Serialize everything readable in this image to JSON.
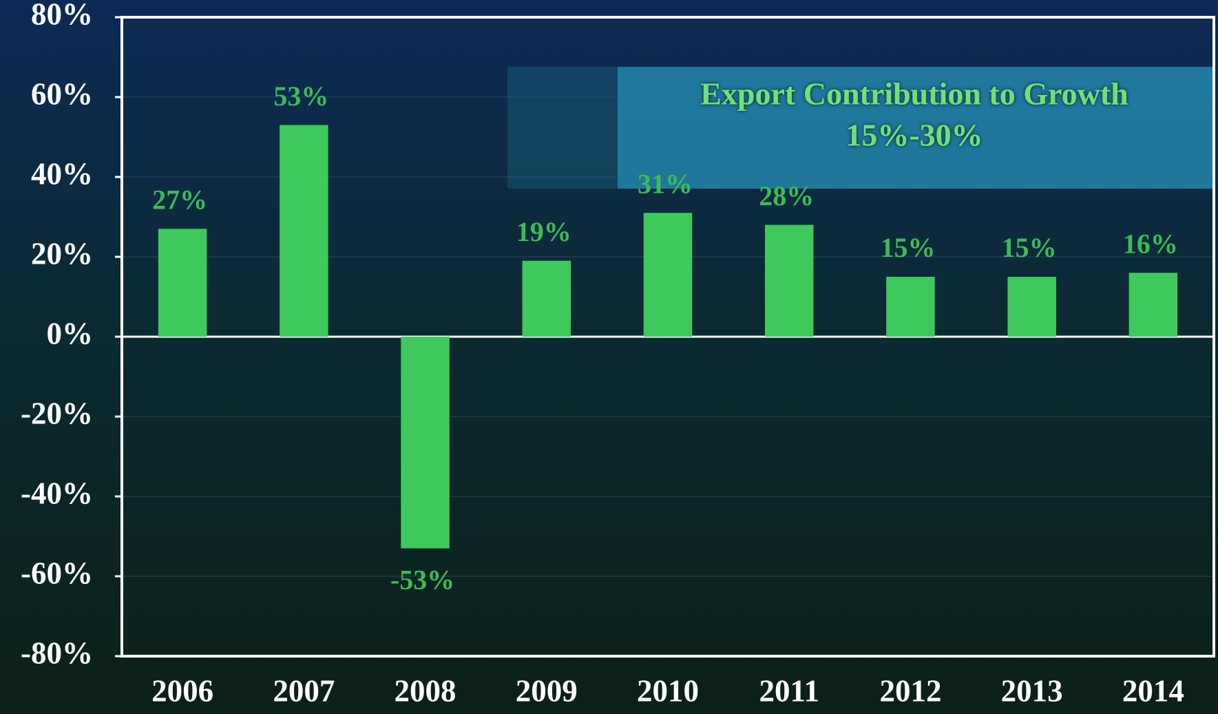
{
  "chart_data": {
    "type": "bar",
    "annotations": [
      "Export Contribution to Growth",
      "15%-30%"
    ],
    "categories": [
      "2006",
      "2007",
      "2008",
      "2009",
      "2010",
      "2011",
      "2012",
      "2013",
      "2014"
    ],
    "values": [
      27,
      53,
      -53,
      19,
      31,
      28,
      15,
      15,
      16
    ],
    "value_labels": [
      "27%",
      "53%",
      "-53%",
      "19%",
      "31%",
      "28%",
      "15%",
      "15%",
      "16%"
    ],
    "color": "#3fc95c",
    "ylim": [
      -80,
      80
    ],
    "yticks": [
      {
        "value": -80,
        "label": "-80%"
      },
      {
        "value": -60,
        "label": "-60%"
      },
      {
        "value": -40,
        "label": "-40%"
      },
      {
        "value": -20,
        "label": "-20%"
      },
      {
        "value": 0,
        "label": "0%"
      },
      {
        "value": 20,
        "label": "20%"
      },
      {
        "value": 40,
        "label": "40%"
      },
      {
        "value": 60,
        "label": "60%"
      },
      {
        "value": 80,
        "label": "80%"
      }
    ],
    "grid": true
  }
}
